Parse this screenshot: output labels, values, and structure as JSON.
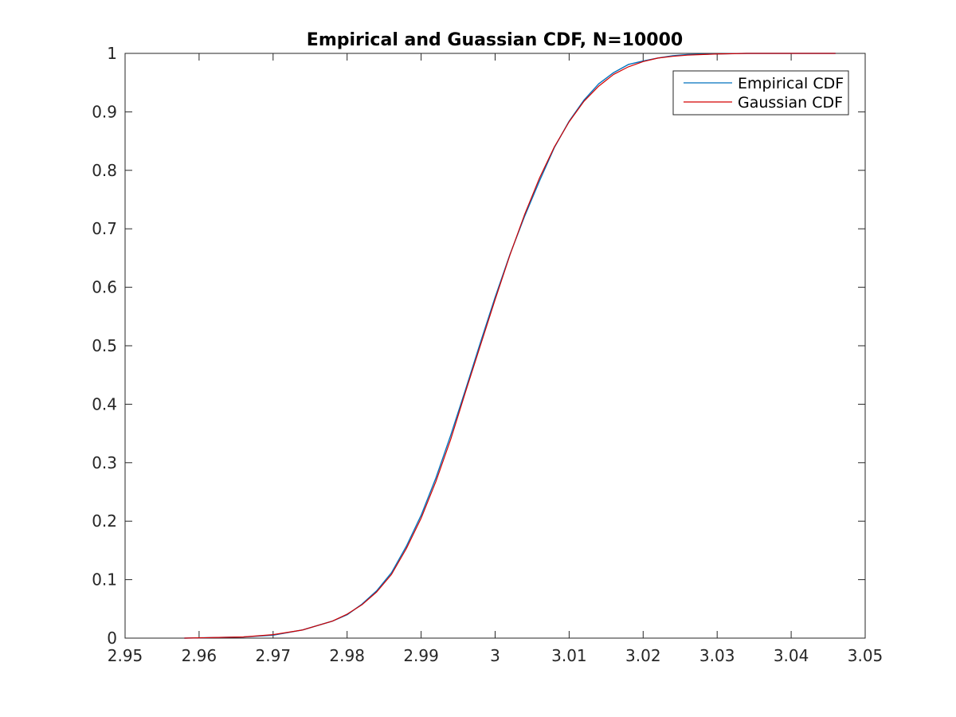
{
  "chart_data": {
    "type": "line",
    "title": "Empirical and Guassian CDF, N=10000",
    "xlabel": "",
    "ylabel": "",
    "xlim": [
      2.95,
      3.05
    ],
    "ylim": [
      0,
      1
    ],
    "xticks": [
      2.95,
      2.96,
      2.97,
      2.98,
      2.99,
      3.0,
      3.01,
      3.02,
      3.03,
      3.04,
      3.05
    ],
    "xtick_labels": [
      "2.95",
      "2.96",
      "2.97",
      "2.98",
      "2.99",
      "3",
      "3.01",
      "3.02",
      "3.03",
      "3.04",
      "3.05"
    ],
    "yticks": [
      0,
      0.1,
      0.2,
      0.3,
      0.4,
      0.5,
      0.6,
      0.7,
      0.8,
      0.9,
      1
    ],
    "ytick_labels": [
      "0",
      "0.1",
      "0.2",
      "0.3",
      "0.4",
      "0.5",
      "0.6",
      "0.7",
      "0.8",
      "0.9",
      "1"
    ],
    "grid": false,
    "legend_position": "top-right",
    "series": [
      {
        "name": "Empirical CDF",
        "color": "#0072BD",
        "x": [
          2.958,
          2.962,
          2.966,
          2.97,
          2.974,
          2.978,
          2.98,
          2.982,
          2.984,
          2.986,
          2.988,
          2.99,
          2.992,
          2.994,
          2.996,
          2.998,
          3.0,
          3.002,
          3.004,
          3.006,
          3.008,
          3.01,
          3.012,
          3.014,
          3.016,
          3.018,
          3.02,
          3.022,
          3.024,
          3.026,
          3.03,
          3.034,
          3.04,
          3.046
        ],
        "y": [
          0.0,
          0.001,
          0.002,
          0.005,
          0.014,
          0.029,
          0.04,
          0.058,
          0.081,
          0.112,
          0.157,
          0.21,
          0.274,
          0.347,
          0.425,
          0.505,
          0.583,
          0.656,
          0.722,
          0.782,
          0.839,
          0.884,
          0.92,
          0.948,
          0.967,
          0.981,
          0.987,
          0.992,
          0.996,
          0.998,
          0.999,
          1.0,
          1.0,
          1.0
        ]
      },
      {
        "name": "Gaussian CDF",
        "color": "#D40000",
        "x": [
          2.958,
          2.962,
          2.966,
          2.97,
          2.974,
          2.978,
          2.98,
          2.982,
          2.984,
          2.986,
          2.988,
          2.99,
          2.992,
          2.994,
          2.996,
          2.998,
          3.0,
          3.002,
          3.004,
          3.006,
          3.008,
          3.01,
          3.012,
          3.014,
          3.016,
          3.018,
          3.02,
          3.022,
          3.024,
          3.026,
          3.03,
          3.034,
          3.04,
          3.046
        ],
        "y": [
          0.0,
          0.001,
          0.002,
          0.006,
          0.014,
          0.029,
          0.041,
          0.057,
          0.079,
          0.109,
          0.153,
          0.205,
          0.268,
          0.34,
          0.421,
          0.5,
          0.579,
          0.655,
          0.725,
          0.787,
          0.84,
          0.883,
          0.918,
          0.944,
          0.964,
          0.977,
          0.986,
          0.992,
          0.995,
          0.997,
          0.999,
          1.0,
          1.0,
          1.0
        ]
      }
    ]
  }
}
